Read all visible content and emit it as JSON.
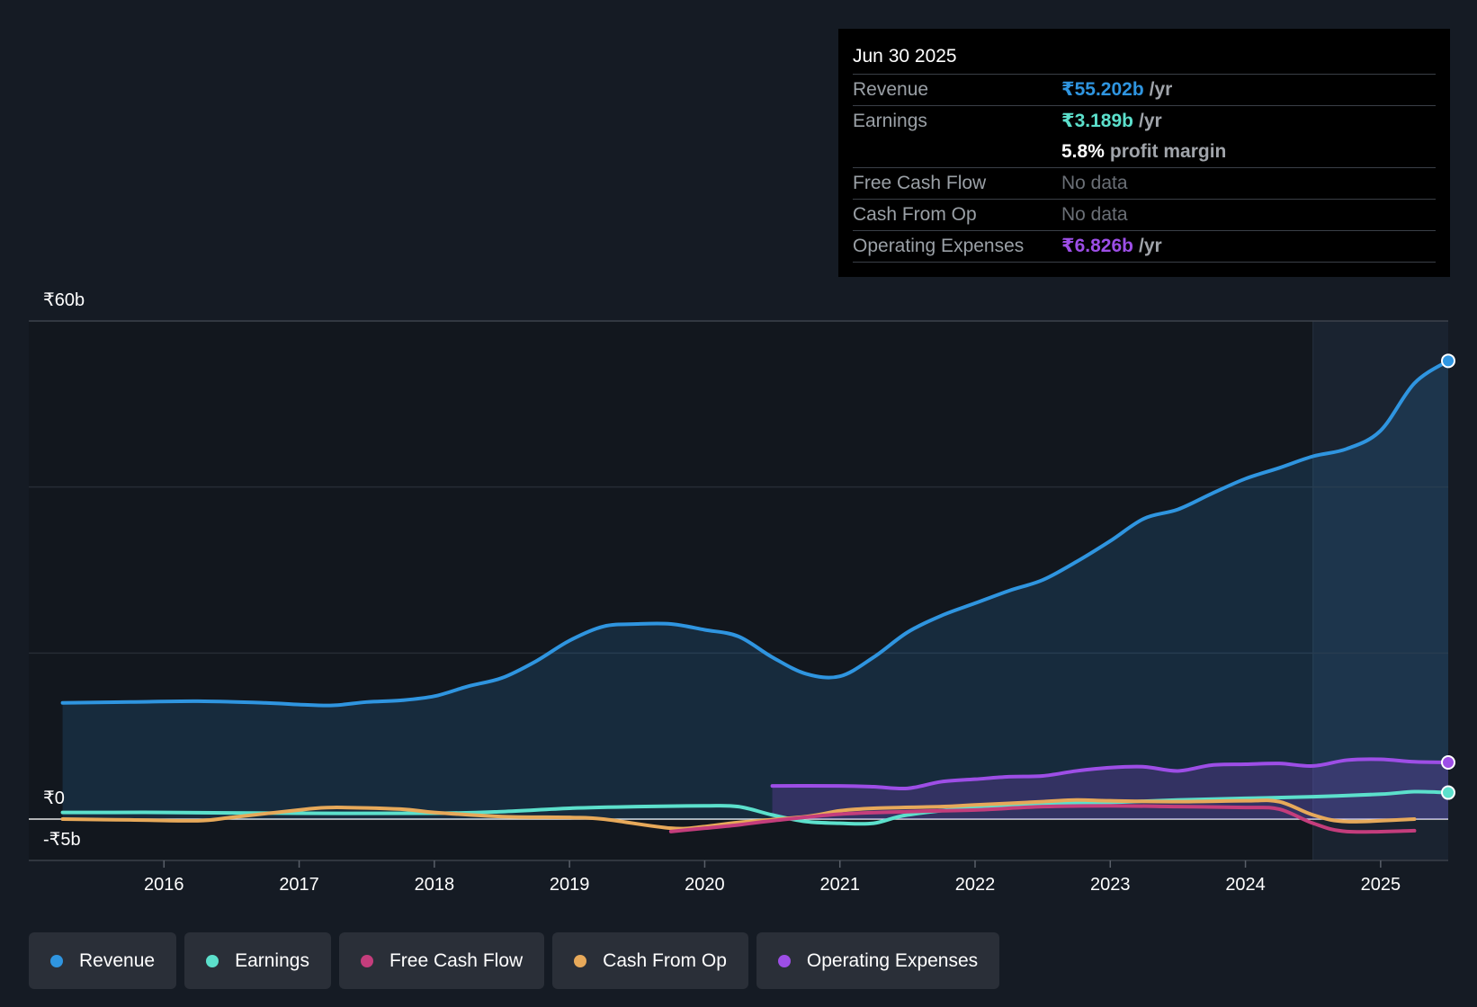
{
  "chart_data": {
    "type": "line",
    "currency": "₹",
    "x_ticks": [
      "2016",
      "2017",
      "2018",
      "2019",
      "2020",
      "2021",
      "2022",
      "2023",
      "2024",
      "2025"
    ],
    "y_labels": {
      "top": "₹60b",
      "zero": "₹0",
      "bottom": "-₹5b"
    },
    "ylim": [
      -5,
      60
    ],
    "xlim": [
      2015.0,
      2025.5
    ],
    "highlight_start": 2024.5,
    "series": [
      {
        "key": "revenue",
        "name": "Revenue",
        "color": "#2f95e0",
        "fill": true,
        "points": [
          [
            2015.25,
            14
          ],
          [
            2015.75,
            14.1
          ],
          [
            2016.25,
            14.2
          ],
          [
            2016.75,
            14
          ],
          [
            2017.0,
            13.8
          ],
          [
            2017.25,
            13.7
          ],
          [
            2017.5,
            14.1
          ],
          [
            2017.75,
            14.3
          ],
          [
            2018.0,
            14.8
          ],
          [
            2018.25,
            16
          ],
          [
            2018.5,
            17
          ],
          [
            2018.75,
            19
          ],
          [
            2019.0,
            21.5
          ],
          [
            2019.25,
            23.2
          ],
          [
            2019.5,
            23.5
          ],
          [
            2019.75,
            23.5
          ],
          [
            2020.0,
            22.8
          ],
          [
            2020.25,
            22
          ],
          [
            2020.5,
            19.5
          ],
          [
            2020.75,
            17.5
          ],
          [
            2021.0,
            17.2
          ],
          [
            2021.25,
            19.5
          ],
          [
            2021.5,
            22.5
          ],
          [
            2021.75,
            24.5
          ],
          [
            2022.0,
            26
          ],
          [
            2022.25,
            27.5
          ],
          [
            2022.5,
            28.8
          ],
          [
            2022.75,
            31
          ],
          [
            2023.0,
            33.5
          ],
          [
            2023.25,
            36.2
          ],
          [
            2023.5,
            37.3
          ],
          [
            2023.75,
            39.2
          ],
          [
            2024.0,
            41
          ],
          [
            2024.25,
            42.3
          ],
          [
            2024.5,
            43.7
          ],
          [
            2024.75,
            44.6
          ],
          [
            2025.0,
            46.8
          ],
          [
            2025.25,
            52.5
          ],
          [
            2025.5,
            55.2
          ]
        ]
      },
      {
        "key": "earnings",
        "name": "Earnings",
        "color": "#5ce0cc",
        "fill": false,
        "points": [
          [
            2015.25,
            0.8
          ],
          [
            2016.0,
            0.8
          ],
          [
            2017.0,
            0.7
          ],
          [
            2018.0,
            0.7
          ],
          [
            2018.5,
            0.9
          ],
          [
            2019.0,
            1.3
          ],
          [
            2019.5,
            1.5
          ],
          [
            2020.0,
            1.6
          ],
          [
            2020.25,
            1.5
          ],
          [
            2020.5,
            0.5
          ],
          [
            2020.75,
            -0.3
          ],
          [
            2021.0,
            -0.5
          ],
          [
            2021.25,
            -0.5
          ],
          [
            2021.5,
            0.5
          ],
          [
            2022.0,
            1.4
          ],
          [
            2022.5,
            1.8
          ],
          [
            2023.0,
            2.0
          ],
          [
            2023.5,
            2.3
          ],
          [
            2024.0,
            2.5
          ],
          [
            2024.5,
            2.7
          ],
          [
            2025.0,
            3.0
          ],
          [
            2025.25,
            3.3
          ],
          [
            2025.5,
            3.189
          ]
        ]
      },
      {
        "key": "fcf",
        "name": "Free Cash Flow",
        "color": "#c43d7c",
        "fill": false,
        "points": [
          [
            2019.75,
            -1.5
          ],
          [
            2020.0,
            -1.1
          ],
          [
            2020.25,
            -0.7
          ],
          [
            2020.5,
            -0.2
          ],
          [
            2021.0,
            0.6
          ],
          [
            2021.5,
            0.9
          ],
          [
            2022.0,
            1.1
          ],
          [
            2022.5,
            1.5
          ],
          [
            2023.0,
            1.6
          ],
          [
            2023.5,
            1.5
          ],
          [
            2024.0,
            1.4
          ],
          [
            2024.25,
            1.2
          ],
          [
            2024.5,
            -0.5
          ],
          [
            2024.75,
            -1.5
          ],
          [
            2025.25,
            -1.4
          ]
        ]
      },
      {
        "key": "cfo",
        "name": "Cash From Op",
        "color": "#e7a95a",
        "fill": false,
        "points": [
          [
            2015.25,
            0
          ],
          [
            2015.75,
            -0.1
          ],
          [
            2016.25,
            -0.2
          ],
          [
            2016.5,
            0.2
          ],
          [
            2017.0,
            1.1
          ],
          [
            2017.25,
            1.4
          ],
          [
            2017.75,
            1.2
          ],
          [
            2018.0,
            0.8
          ],
          [
            2018.5,
            0.3
          ],
          [
            2019.0,
            0.2
          ],
          [
            2019.25,
            0
          ],
          [
            2019.75,
            -1.1
          ],
          [
            2020.0,
            -0.9
          ],
          [
            2020.25,
            -0.4
          ],
          [
            2020.75,
            0.3
          ],
          [
            2021.0,
            1
          ],
          [
            2021.25,
            1.3
          ],
          [
            2021.75,
            1.5
          ],
          [
            2022.0,
            1.7
          ],
          [
            2022.5,
            2.1
          ],
          [
            2022.75,
            2.3
          ],
          [
            2023.0,
            2.2
          ],
          [
            2023.5,
            2.1
          ],
          [
            2024.0,
            2.2
          ],
          [
            2024.25,
            2.1
          ],
          [
            2024.5,
            0.5
          ],
          [
            2024.75,
            -0.3
          ],
          [
            2025.25,
            0
          ]
        ]
      },
      {
        "key": "opex",
        "name": "Operating Expenses",
        "color": "#9d4ee6",
        "fill": true,
        "points": [
          [
            2020.5,
            4
          ],
          [
            2021.0,
            4
          ],
          [
            2021.25,
            3.9
          ],
          [
            2021.5,
            3.7
          ],
          [
            2021.75,
            4.5
          ],
          [
            2022.0,
            4.8
          ],
          [
            2022.25,
            5.1
          ],
          [
            2022.5,
            5.2
          ],
          [
            2022.75,
            5.8
          ],
          [
            2023.0,
            6.2
          ],
          [
            2023.25,
            6.3
          ],
          [
            2023.5,
            5.8
          ],
          [
            2023.75,
            6.5
          ],
          [
            2024.0,
            6.6
          ],
          [
            2024.25,
            6.7
          ],
          [
            2024.5,
            6.4
          ],
          [
            2024.75,
            7.1
          ],
          [
            2025.0,
            7.2
          ],
          [
            2025.25,
            6.9
          ],
          [
            2025.5,
            6.826
          ]
        ]
      }
    ]
  },
  "tooltip": {
    "date": "Jun 30 2025",
    "rows": {
      "revenue": {
        "label": "Revenue",
        "value": "₹55.202b",
        "unit": "/yr",
        "color": "#2f95e0"
      },
      "earnings": {
        "label": "Earnings",
        "value": "₹3.189b",
        "unit": "/yr",
        "color": "#5ce0cc"
      },
      "margin": {
        "value": "5.8%",
        "unit": "profit margin",
        "color": "#ffffff"
      },
      "fcf": {
        "label": "Free Cash Flow",
        "value": "No data"
      },
      "cfo": {
        "label": "Cash From Op",
        "value": "No data"
      },
      "opex": {
        "label": "Operating Expenses",
        "value": "₹6.826b",
        "unit": "/yr",
        "color": "#9d4ee6"
      }
    }
  },
  "legend": [
    {
      "name": "Revenue",
      "color": "#2f95e0"
    },
    {
      "name": "Earnings",
      "color": "#5ce0cc"
    },
    {
      "name": "Free Cash Flow",
      "color": "#c43d7c"
    },
    {
      "name": "Cash From Op",
      "color": "#e7a95a"
    },
    {
      "name": "Operating Expenses",
      "color": "#9d4ee6"
    }
  ]
}
